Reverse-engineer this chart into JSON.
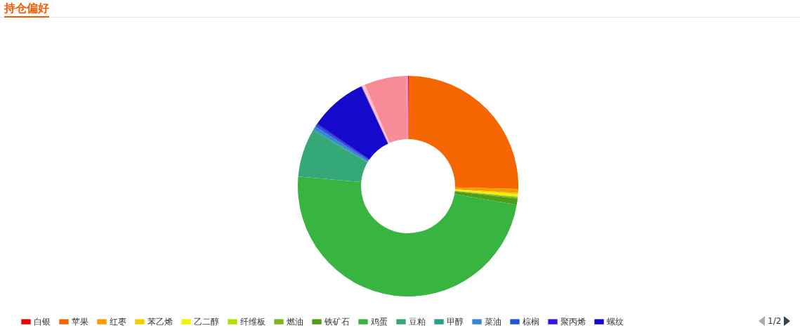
{
  "chart_data": {
    "type": "donut",
    "title": "持仓偏好",
    "categories": [
      "白银",
      "苹果",
      "红枣",
      "苯乙烯",
      "乙二醇",
      "纤维板",
      "燃油",
      "铁矿石",
      "鸡蛋",
      "豆粕",
      "甲醇",
      "菜油",
      "棕榈",
      "聚丙烯",
      "螺纹",
      null,
      null,
      null,
      null
    ],
    "values": [
      0.1,
      25.3,
      0.6,
      0.2,
      0.3,
      0.1,
      0.2,
      0.9,
      48.7,
      7.0,
      0.2,
      0.5,
      0.3,
      0.2,
      8.4,
      0.1,
      0.5,
      6.1,
      0.3
    ],
    "colors": [
      "#f00000",
      "#f56600",
      "#f59d00",
      "#f5cc00",
      "#f2f200",
      "#b4e000",
      "#7fb51c",
      "#4e9e1c",
      "#38b540",
      "#34a877",
      "#2e9c8c",
      "#3388d4",
      "#2556d1",
      "#3219d6",
      "#1509cc",
      "#4d13b5",
      "#f9bdd0",
      "#f78b98",
      "#f58ac8"
    ],
    "legend": "bottom",
    "annotations": [
      "1/2"
    ]
  }
}
